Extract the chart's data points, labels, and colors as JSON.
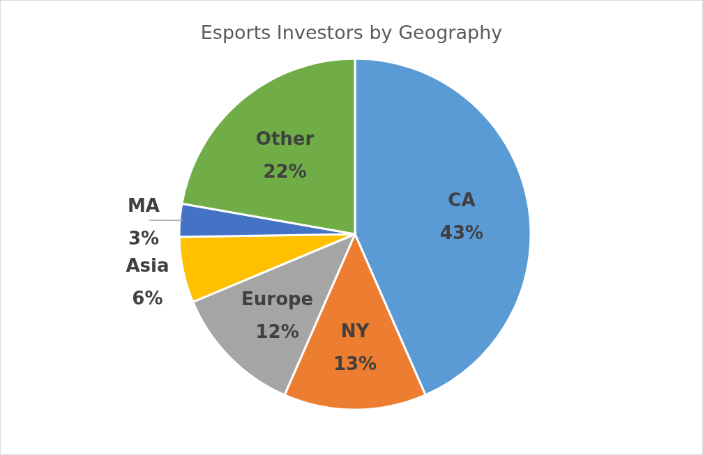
{
  "chart_data": {
    "type": "pie",
    "title": "Esports Investors by Geography",
    "categories": [
      "CA",
      "NY",
      "Europe",
      "Asia",
      "MA",
      "Other"
    ],
    "values": [
      43,
      13,
      12,
      6,
      3,
      22
    ],
    "colors": [
      "#5b9bd5",
      "#ed7d31",
      "#a5a5a5",
      "#ffc000",
      "#4472c4",
      "#70ad47"
    ],
    "value_labels": [
      "43%",
      "13%",
      "12%",
      "6%",
      "3%",
      "22%"
    ],
    "legend": false
  }
}
